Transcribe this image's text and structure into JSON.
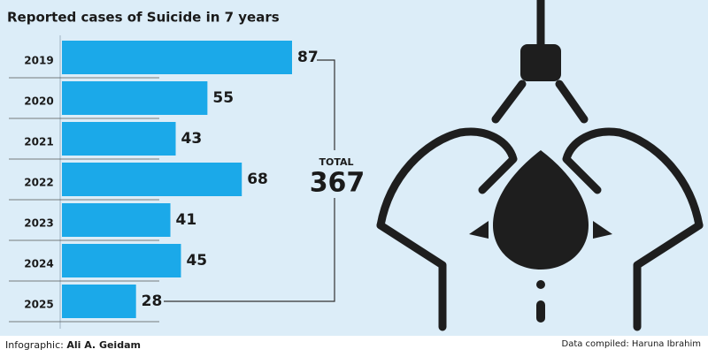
{
  "chart_data": {
    "type": "bar",
    "orientation": "horizontal",
    "title": "Reported cases of Suicide in 7 years",
    "categories": [
      "2019",
      "2020",
      "2021",
      "2022",
      "2023",
      "2024",
      "2025"
    ],
    "values": [
      87,
      55,
      43,
      68,
      41,
      45,
      28
    ],
    "color": "#1ba9e9",
    "total": {
      "label": "TOTAL",
      "value": 367
    }
  },
  "footer": {
    "credit_label": "Infographic:",
    "credit_name": "Ali A. Geidam",
    "source": "Data compiled: Haruna Ibrahim"
  }
}
